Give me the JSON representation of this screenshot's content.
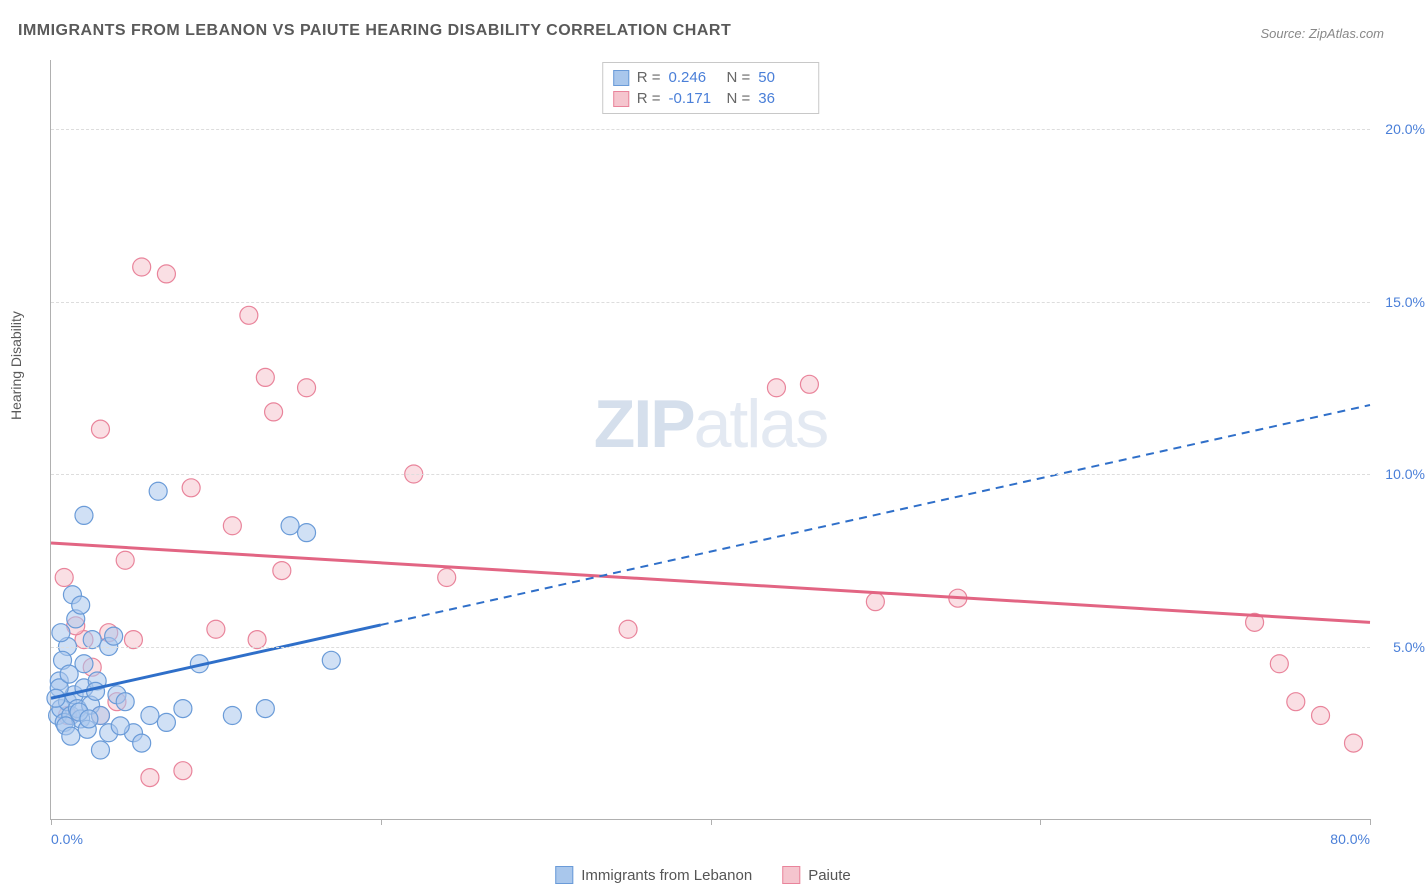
{
  "title": "IMMIGRANTS FROM LEBANON VS PAIUTE HEARING DISABILITY CORRELATION CHART",
  "source": "Source: ZipAtlas.com",
  "y_axis_label": "Hearing Disability",
  "watermark_bold": "ZIP",
  "watermark_light": "atlas",
  "chart": {
    "type": "scatter",
    "xlim": [
      0,
      80
    ],
    "ylim": [
      0,
      22
    ],
    "x_ticks": [
      0,
      20,
      40,
      60,
      80
    ],
    "x_tick_labels": [
      "0.0%",
      "",
      "",
      "",
      "80.0%"
    ],
    "y_gridlines": [
      5,
      10,
      15,
      20
    ],
    "y_tick_labels": [
      "5.0%",
      "10.0%",
      "15.0%",
      "20.0%"
    ],
    "grid_color": "#dddddd",
    "axis_color": "#b0b0b0",
    "background_color": "#ffffff",
    "label_fontsize": 14,
    "tick_color": "#4a7fd8",
    "series": [
      {
        "name": "Immigrants from Lebanon",
        "fill_color": "#a9c7ec",
        "stroke_color": "#6a9bd8",
        "fill_opacity": 0.55,
        "marker_radius": 9,
        "trend_color": "#2f6fc9",
        "trend_width": 3,
        "trend_solid_end_x": 20,
        "trend": {
          "x1": 0,
          "y1": 3.5,
          "x2": 80,
          "y2": 12.0
        },
        "R": "0.246",
        "N": "50",
        "points": [
          [
            0.4,
            3.0
          ],
          [
            0.6,
            3.2
          ],
          [
            0.8,
            2.8
          ],
          [
            1.0,
            3.4
          ],
          [
            1.2,
            3.0
          ],
          [
            1.4,
            3.6
          ],
          [
            0.5,
            4.0
          ],
          [
            1.6,
            3.2
          ],
          [
            1.8,
            2.9
          ],
          [
            2.0,
            3.8
          ],
          [
            2.2,
            2.6
          ],
          [
            2.4,
            3.3
          ],
          [
            2.0,
            4.5
          ],
          [
            3.0,
            3.0
          ],
          [
            3.5,
            2.5
          ],
          [
            4.0,
            3.6
          ],
          [
            1.0,
            5.0
          ],
          [
            1.5,
            5.8
          ],
          [
            0.7,
            4.6
          ],
          [
            1.3,
            6.5
          ],
          [
            2.5,
            5.2
          ],
          [
            3.5,
            5.0
          ],
          [
            0.5,
            3.8
          ],
          [
            0.9,
            2.7
          ],
          [
            1.1,
            4.2
          ],
          [
            1.7,
            3.1
          ],
          [
            2.8,
            4.0
          ],
          [
            4.5,
            3.4
          ],
          [
            5.0,
            2.5
          ],
          [
            6.0,
            3.0
          ],
          [
            7.0,
            2.8
          ],
          [
            8.0,
            3.2
          ],
          [
            9.0,
            4.5
          ],
          [
            11.0,
            3.0
          ],
          [
            13.0,
            3.2
          ],
          [
            17.0,
            4.6
          ],
          [
            14.5,
            8.5
          ],
          [
            15.5,
            8.3
          ],
          [
            6.5,
            9.5
          ],
          [
            2.0,
            8.8
          ],
          [
            3.0,
            2.0
          ],
          [
            5.5,
            2.2
          ],
          [
            0.3,
            3.5
          ],
          [
            0.6,
            5.4
          ],
          [
            1.2,
            2.4
          ],
          [
            1.8,
            6.2
          ],
          [
            2.3,
            2.9
          ],
          [
            2.7,
            3.7
          ],
          [
            3.8,
            5.3
          ],
          [
            4.2,
            2.7
          ]
        ]
      },
      {
        "name": "Paiute",
        "fill_color": "#f5c5ce",
        "stroke_color": "#e9849b",
        "fill_opacity": 0.55,
        "marker_radius": 9,
        "trend_color": "#e26583",
        "trend_width": 3,
        "trend": {
          "x1": 0,
          "y1": 8.0,
          "x2": 80,
          "y2": 5.7
        },
        "R": "-0.171",
        "N": "36",
        "points": [
          [
            3.0,
            11.3
          ],
          [
            4.5,
            7.5
          ],
          [
            5.5,
            16.0
          ],
          [
            7.0,
            15.8
          ],
          [
            8.5,
            9.6
          ],
          [
            12.0,
            14.6
          ],
          [
            13.0,
            12.8
          ],
          [
            13.5,
            11.8
          ],
          [
            15.5,
            12.5
          ],
          [
            11.0,
            8.5
          ],
          [
            5.0,
            5.2
          ],
          [
            2.0,
            5.2
          ],
          [
            3.0,
            3.0
          ],
          [
            4.0,
            3.4
          ],
          [
            6.0,
            1.2
          ],
          [
            8.0,
            1.4
          ],
          [
            10.0,
            5.5
          ],
          [
            12.5,
            5.2
          ],
          [
            14.0,
            7.2
          ],
          [
            22.0,
            10.0
          ],
          [
            24.0,
            7.0
          ],
          [
            35.0,
            5.5
          ],
          [
            44.0,
            12.5
          ],
          [
            46.0,
            12.6
          ],
          [
            50.0,
            6.3
          ],
          [
            55.0,
            6.4
          ],
          [
            73.0,
            5.7
          ],
          [
            74.5,
            4.5
          ],
          [
            75.5,
            3.4
          ],
          [
            77.0,
            3.0
          ],
          [
            79.0,
            2.2
          ],
          [
            1.5,
            5.6
          ],
          [
            0.8,
            7.0
          ],
          [
            2.5,
            4.4
          ],
          [
            1.0,
            3.0
          ],
          [
            3.5,
            5.4
          ]
        ]
      }
    ]
  },
  "stats_labels": {
    "R": "R =",
    "N": "N ="
  },
  "legend": {
    "series1_label": "Immigrants from Lebanon",
    "series2_label": "Paiute"
  }
}
